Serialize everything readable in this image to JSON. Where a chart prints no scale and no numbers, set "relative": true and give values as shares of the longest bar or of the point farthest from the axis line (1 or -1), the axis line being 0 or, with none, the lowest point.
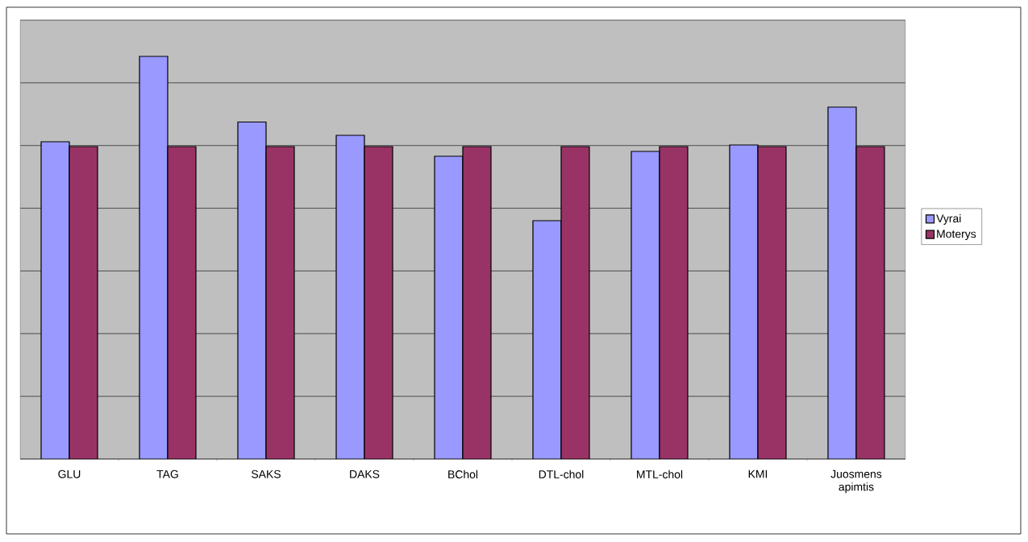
{
  "chart_data": {
    "type": "bar",
    "relative": true,
    "grid": "y",
    "legend": "right",
    "categories": [
      "GLU",
      "TAG",
      "SAKS",
      "DAKS",
      "BChol",
      "DTL-chol",
      "MTL-chol",
      "KMI",
      "Juosmens apimtis"
    ],
    "series": [
      {
        "name": "Vyrai",
        "color": "#9999ff",
        "values": [
          0.788,
          1,
          0.837,
          0.804,
          0.752,
          0.592,
          0.764,
          0.78,
          0.874
        ]
      },
      {
        "name": "Moterys",
        "color": "#993366",
        "values": [
          0.776,
          0.776,
          0.776,
          0.776,
          0.776,
          0.776,
          0.776,
          0.776,
          0.776
        ]
      }
    ]
  }
}
